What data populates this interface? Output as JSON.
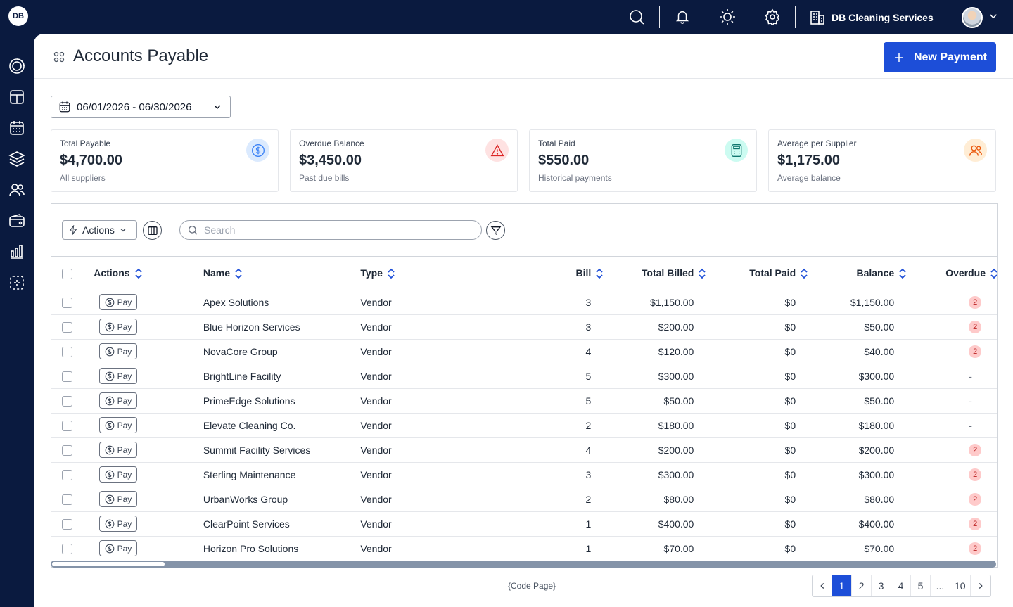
{
  "app": {
    "logo_text": "DB",
    "company": "DB Cleaning Services"
  },
  "topbar": {
    "icons": [
      "search-icon",
      "bell-icon",
      "sun-icon",
      "gear-icon"
    ]
  },
  "sidebar": {
    "icons": [
      "dashboard-gauge-icon",
      "layout-icon",
      "calendar-icon",
      "layers-icon",
      "users-icon",
      "wallet-icon",
      "bar-chart-icon",
      "scan-icon"
    ]
  },
  "page": {
    "title": "Accounts Payable",
    "new_button": "New Payment"
  },
  "date_range": "06/01/2026 - 06/30/2026",
  "stats": [
    {
      "label": "Total Payable",
      "value": "$4,700.00",
      "sub": "All suppliers",
      "icon": "dollar-icon",
      "color": "#3b82f6",
      "bg": "#dbeafe"
    },
    {
      "label": "Overdue Balance",
      "value": "$3,450.00",
      "sub": "Past due bills",
      "icon": "warning-icon",
      "color": "#dc2626",
      "bg": "#fee2e2"
    },
    {
      "label": "Total Paid",
      "value": "$550.00",
      "sub": "Historical payments",
      "icon": "calculator-icon",
      "color": "#0f766e",
      "bg": "#ccfbf1"
    },
    {
      "label": "Average per Supplier",
      "value": "$1,175.00",
      "sub": "Average balance",
      "icon": "users-icon",
      "color": "#ea580c",
      "bg": "#ffedd5"
    }
  ],
  "toolbar": {
    "actions_label": "Actions",
    "search_placeholder": "Search"
  },
  "table": {
    "columns": [
      "Actions",
      "Name",
      "Type",
      "Bill",
      "Total Billed",
      "Total Paid",
      "Balance",
      "Overdue"
    ],
    "pay_label": "Pay",
    "rows": [
      {
        "name": "Apex Solutions",
        "type": "Vendor",
        "bill": "3",
        "billed": "$1,150.00",
        "paid": "$0",
        "balance": "$1,150.00",
        "overdue": "2"
      },
      {
        "name": "Blue Horizon Services",
        "type": "Vendor",
        "bill": "3",
        "billed": "$200.00",
        "paid": "$0",
        "balance": "$50.00",
        "overdue": "2"
      },
      {
        "name": "NovaCore Group",
        "type": "Vendor",
        "bill": "4",
        "billed": "$120.00",
        "paid": "$0",
        "balance": "$40.00",
        "overdue": "2"
      },
      {
        "name": "BrightLine Facility",
        "type": "Vendor",
        "bill": "5",
        "billed": "$300.00",
        "paid": "$0",
        "balance": "$300.00",
        "overdue": "-"
      },
      {
        "name": "PrimeEdge Solutions",
        "type": "Vendor",
        "bill": "5",
        "billed": "$50.00",
        "paid": "$0",
        "balance": "$50.00",
        "overdue": "-"
      },
      {
        "name": "Elevate Cleaning Co.",
        "type": "Vendor",
        "bill": "2",
        "billed": "$180.00",
        "paid": "$0",
        "balance": "$180.00",
        "overdue": "-"
      },
      {
        "name": "Summit Facility Services",
        "type": "Vendor",
        "bill": "4",
        "billed": "$200.00",
        "paid": "$0",
        "balance": "$200.00",
        "overdue": "2"
      },
      {
        "name": "Sterling Maintenance",
        "type": "Vendor",
        "bill": "3",
        "billed": "$300.00",
        "paid": "$0",
        "balance": "$300.00",
        "overdue": "2"
      },
      {
        "name": "UrbanWorks Group",
        "type": "Vendor",
        "bill": "2",
        "billed": "$80.00",
        "paid": "$0",
        "balance": "$80.00",
        "overdue": "2"
      },
      {
        "name": "ClearPoint Services",
        "type": "Vendor",
        "bill": "1",
        "billed": "$400.00",
        "paid": "$0",
        "balance": "$400.00",
        "overdue": "2"
      },
      {
        "name": "Horizon Pro Solutions",
        "type": "Vendor",
        "bill": "1",
        "billed": "$70.00",
        "paid": "$0",
        "balance": "$70.00",
        "overdue": "2"
      }
    ]
  },
  "footer": {
    "code_page": "{Code Page}"
  },
  "pagination": {
    "pages": [
      "1",
      "2",
      "3",
      "4",
      "5",
      "...",
      "10"
    ],
    "current": "1"
  },
  "colors": {
    "brand": "#0a1a3f",
    "accent": "#1d4ed8"
  }
}
